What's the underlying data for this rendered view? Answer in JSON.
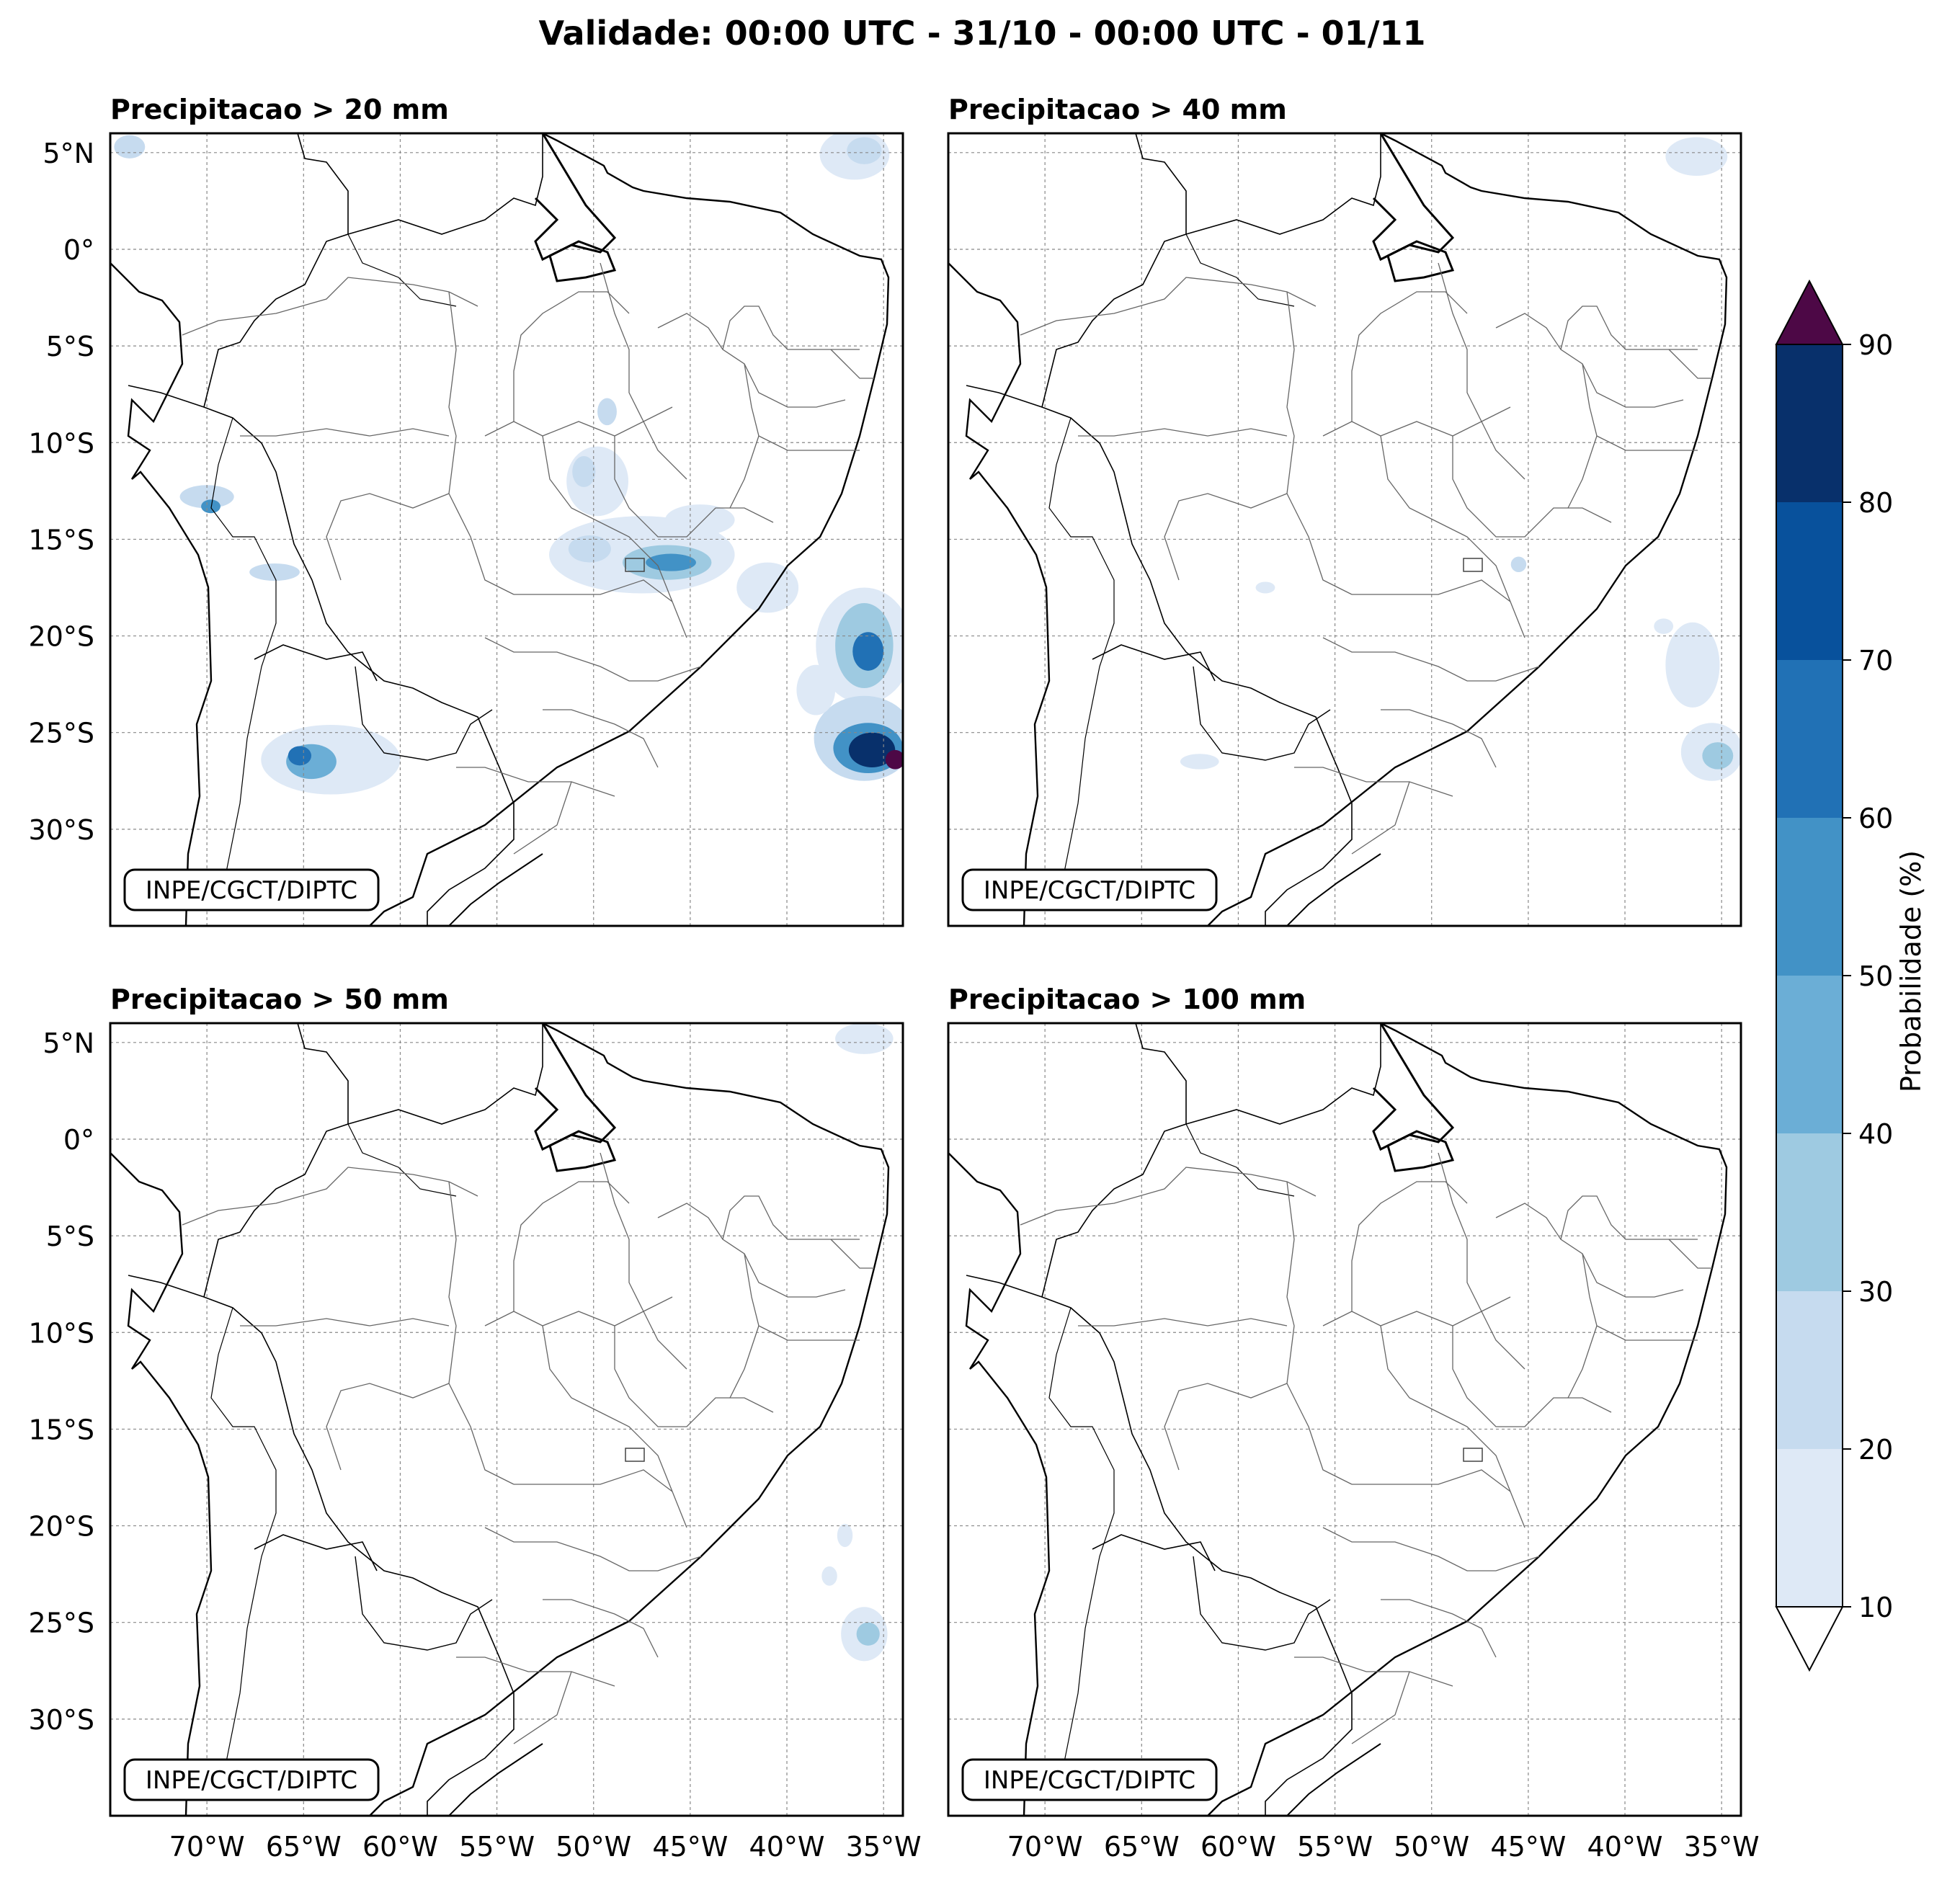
{
  "figure": {
    "title": "Validade: 00:00 UTC - 31/10 - 00:00 UTC - 01/11"
  },
  "axes": {
    "lat_labels": [
      "5°N",
      "0°",
      "5°S",
      "10°S",
      "15°S",
      "20°S",
      "25°S",
      "30°S"
    ],
    "lat_values": [
      5,
      0,
      -5,
      -10,
      -15,
      -20,
      -25,
      -30
    ],
    "lon_labels": [
      "70°W",
      "65°W",
      "60°W",
      "55°W",
      "50°W",
      "45°W",
      "40°W",
      "35°W"
    ],
    "lon_values": [
      -70,
      -65,
      -60,
      -55,
      -50,
      -45,
      -40,
      -35
    ],
    "extent": {
      "lon_min": -75,
      "lon_max": -34,
      "lat_min": -35,
      "lat_max": 6
    }
  },
  "panels": [
    {
      "id": "p20",
      "title": "Precipitacao > 20 mm",
      "credit": "INPE/CGCT/DIPTC"
    },
    {
      "id": "p40",
      "title": "Precipitacao > 40 mm",
      "credit": "INPE/CGCT/DIPTC"
    },
    {
      "id": "p50",
      "title": "Precipitacao > 50 mm",
      "credit": "INPE/CGCT/DIPTC"
    },
    {
      "id": "p100",
      "title": "Precipitacao > 100 mm",
      "credit": "INPE/CGCT/DIPTC"
    }
  ],
  "colorbar": {
    "label": "Probabilidade (%)",
    "ticks": [
      "10",
      "20",
      "30",
      "40",
      "50",
      "60",
      "70",
      "80",
      "90"
    ],
    "levels": [
      10,
      20,
      30,
      40,
      50,
      60,
      70,
      80,
      90
    ],
    "colors": [
      "#dee9f6",
      "#c6dbef",
      "#9ecae1",
      "#6baed6",
      "#4292c6",
      "#2171b5",
      "#08519c",
      "#08306b"
    ],
    "over_color": "#4d0846",
    "under_color": "#ffffff"
  },
  "probability_areas": {
    "p20": [
      {
        "lon": -36.5,
        "lat": 4.9,
        "rx": 1.8,
        "ry": 1.3,
        "p": 15
      },
      {
        "lon": -36.0,
        "lat": 5.1,
        "rx": 0.9,
        "ry": 0.7,
        "p": 25
      },
      {
        "lon": -49.8,
        "lat": -12.0,
        "rx": 1.6,
        "ry": 1.8,
        "p": 15
      },
      {
        "lon": -50.5,
        "lat": -11.5,
        "rx": 0.6,
        "ry": 0.8,
        "p": 25
      },
      {
        "lon": -49.3,
        "lat": -8.4,
        "rx": 0.5,
        "ry": 0.7,
        "p": 25
      },
      {
        "lon": -47.5,
        "lat": -15.8,
        "rx": 4.8,
        "ry": 2.0,
        "p": 15
      },
      {
        "lon": -46.2,
        "lat": -16.2,
        "rx": 2.3,
        "ry": 0.9,
        "p": 35
      },
      {
        "lon": -46.0,
        "lat": -16.2,
        "rx": 1.3,
        "ry": 0.45,
        "p": 55
      },
      {
        "lon": -50.2,
        "lat": -15.5,
        "rx": 1.1,
        "ry": 0.7,
        "p": 25
      },
      {
        "lon": -44.5,
        "lat": -14.0,
        "rx": 1.8,
        "ry": 0.8,
        "p": 15
      },
      {
        "lon": -41.0,
        "lat": -17.5,
        "rx": 1.6,
        "ry": 1.3,
        "p": 15
      },
      {
        "lon": -36.0,
        "lat": -20.5,
        "rx": 2.5,
        "ry": 3.0,
        "p": 15
      },
      {
        "lon": -36.0,
        "lat": -20.5,
        "rx": 1.5,
        "ry": 2.2,
        "p": 35
      },
      {
        "lon": -35.8,
        "lat": -20.8,
        "rx": 0.8,
        "ry": 1.0,
        "p": 60
      },
      {
        "lon": -36.0,
        "lat": -25.3,
        "rx": 2.6,
        "ry": 2.2,
        "p": 25
      },
      {
        "lon": -35.8,
        "lat": -25.8,
        "rx": 1.8,
        "ry": 1.3,
        "p": 55
      },
      {
        "lon": -35.6,
        "lat": -25.9,
        "rx": 1.2,
        "ry": 0.9,
        "p": 85
      },
      {
        "lon": -34.4,
        "lat": -26.4,
        "rx": 0.5,
        "ry": 0.5,
        "p": 95
      },
      {
        "lon": -38.5,
        "lat": -22.8,
        "rx": 1.0,
        "ry": 1.3,
        "p": 15
      },
      {
        "lon": -63.6,
        "lat": -26.4,
        "rx": 3.6,
        "ry": 1.8,
        "p": 15
      },
      {
        "lon": -64.6,
        "lat": -26.5,
        "rx": 1.3,
        "ry": 0.9,
        "p": 45
      },
      {
        "lon": -65.2,
        "lat": -26.2,
        "rx": 0.6,
        "ry": 0.5,
        "p": 65
      },
      {
        "lon": -66.5,
        "lat": -16.7,
        "rx": 1.3,
        "ry": 0.45,
        "p": 25
      },
      {
        "lon": -70.0,
        "lat": -12.8,
        "rx": 1.4,
        "ry": 0.6,
        "p": 25
      },
      {
        "lon": -69.8,
        "lat": -13.3,
        "rx": 0.5,
        "ry": 0.35,
        "p": 55
      },
      {
        "lon": -74.0,
        "lat": 5.3,
        "rx": 0.8,
        "ry": 0.6,
        "p": 25
      }
    ],
    "p40": [
      {
        "lon": -36.3,
        "lat": 4.8,
        "rx": 1.6,
        "ry": 1.0,
        "p": 15
      },
      {
        "lon": -36.5,
        "lat": -21.5,
        "rx": 1.4,
        "ry": 2.2,
        "p": 15
      },
      {
        "lon": -35.5,
        "lat": -26.0,
        "rx": 1.6,
        "ry": 1.5,
        "p": 15
      },
      {
        "lon": -35.2,
        "lat": -26.2,
        "rx": 0.8,
        "ry": 0.7,
        "p": 35
      },
      {
        "lon": -62.0,
        "lat": -26.5,
        "rx": 1.0,
        "ry": 0.4,
        "p": 15
      },
      {
        "lon": -45.5,
        "lat": -16.3,
        "rx": 0.4,
        "ry": 0.4,
        "p": 25
      },
      {
        "lon": -58.6,
        "lat": -17.5,
        "rx": 0.5,
        "ry": 0.3,
        "p": 15
      },
      {
        "lon": -38.0,
        "lat": -19.5,
        "rx": 0.5,
        "ry": 0.4,
        "p": 15
      }
    ],
    "p50": [
      {
        "lon": -36.0,
        "lat": 5.2,
        "rx": 1.5,
        "ry": 0.8,
        "p": 15
      },
      {
        "lon": -36.0,
        "lat": -25.6,
        "rx": 1.2,
        "ry": 1.4,
        "p": 15
      },
      {
        "lon": -35.8,
        "lat": -25.6,
        "rx": 0.6,
        "ry": 0.6,
        "p": 35
      },
      {
        "lon": -37.8,
        "lat": -22.6,
        "rx": 0.4,
        "ry": 0.5,
        "p": 15
      },
      {
        "lon": -37.0,
        "lat": -20.5,
        "rx": 0.4,
        "ry": 0.6,
        "p": 15
      }
    ],
    "p100": []
  }
}
